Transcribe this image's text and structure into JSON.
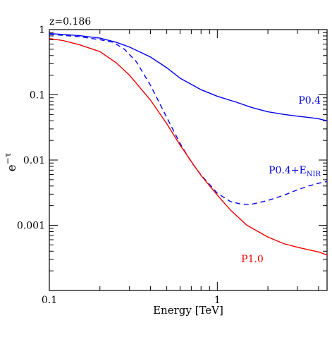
{
  "chart_data": {
    "type": "line",
    "title": "z=0.186",
    "xlabel": "Energy [TeV]",
    "ylabel": "e",
    "ylabel_sup": "−τ",
    "x_scale": "log",
    "y_scale": "log",
    "xlim": [
      0.1,
      4.5
    ],
    "ylim": [
      0.0001,
      1.0
    ],
    "x_ticks": [
      {
        "value": 0.1,
        "label": "0.1"
      },
      {
        "value": 1,
        "label": "1"
      }
    ],
    "y_ticks": [
      {
        "value": 1,
        "label": "1"
      },
      {
        "value": 0.1,
        "label": "0.1"
      },
      {
        "value": 0.01,
        "label": "0.01"
      },
      {
        "value": 0.001,
        "label": "0.001"
      }
    ],
    "series": [
      {
        "name": "P0.4",
        "color": "#0000ee",
        "dash": "solid",
        "label_parts": [
          "P0.4"
        ],
        "x": [
          0.1,
          0.15,
          0.2,
          0.25,
          0.3,
          0.4,
          0.5,
          0.6,
          0.8,
          1.0,
          1.3,
          1.6,
          2.0,
          2.5,
          3.0,
          3.5,
          4.0,
          4.5
        ],
        "y": [
          0.87,
          0.81,
          0.74,
          0.64,
          0.54,
          0.38,
          0.26,
          0.18,
          0.12,
          0.095,
          0.077,
          0.064,
          0.055,
          0.05,
          0.047,
          0.045,
          0.043,
          0.04
        ]
      },
      {
        "name": "P0.4+ENIR",
        "color": "#0000ee",
        "dash": "dashed",
        "label_parts": [
          "P0.4+E",
          "NIR"
        ],
        "x": [
          0.1,
          0.15,
          0.2,
          0.24,
          0.28,
          0.33,
          0.4,
          0.5,
          0.6,
          0.7,
          0.8,
          1.0,
          1.2,
          1.4,
          1.6,
          2.0,
          2.5,
          3.0,
          3.5,
          4.0,
          4.5
        ],
        "y": [
          0.85,
          0.78,
          0.7,
          0.64,
          0.5,
          0.32,
          0.14,
          0.045,
          0.018,
          0.0093,
          0.0059,
          0.0031,
          0.0023,
          0.0021,
          0.0021,
          0.0024,
          0.0029,
          0.0035,
          0.004,
          0.0044,
          0.0047
        ]
      },
      {
        "name": "P1.0",
        "color": "#ee0000",
        "dash": "solid",
        "label_parts": [
          "P1.0"
        ],
        "x": [
          0.1,
          0.12,
          0.15,
          0.2,
          0.25,
          0.3,
          0.4,
          0.5,
          0.6,
          0.7,
          0.8,
          1.0,
          1.2,
          1.5,
          2.0,
          2.5,
          3.0,
          3.5,
          4.0,
          4.5
        ],
        "y": [
          0.73,
          0.68,
          0.59,
          0.46,
          0.31,
          0.2,
          0.083,
          0.036,
          0.017,
          0.0095,
          0.0058,
          0.0029,
          0.0017,
          0.001,
          0.00066,
          0.00052,
          0.00046,
          0.00042,
          0.00039,
          0.00035
        ]
      }
    ]
  }
}
